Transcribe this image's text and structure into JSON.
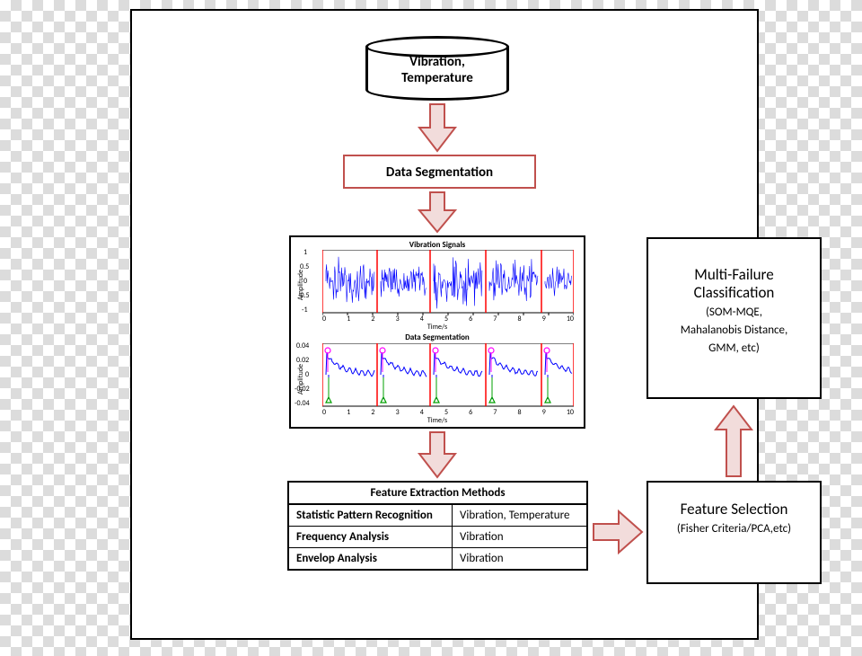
{
  "cylinder": {
    "line1": "Vibration,",
    "line2": "Temperature"
  },
  "data_segmentation": {
    "label": "Data Segmentation"
  },
  "charts": {
    "top": {
      "title": "Vibration Signals",
      "ylabel": "Amplitude",
      "xlabel": "Time/s",
      "ylim": [
        -1,
        1
      ],
      "xlim": [
        0,
        10
      ],
      "segments": [
        0,
        2.2,
        4.3,
        6.5,
        8.7,
        10
      ],
      "signal_color": "#0000ff",
      "seg_color": "#ff0000"
    },
    "bot": {
      "title": "Data Segmentation",
      "ylabel": "Amplitude",
      "xlabel": "Time/s",
      "ylim": [
        -0.04,
        0.04
      ],
      "xlim": [
        0,
        10
      ],
      "segments": [
        0,
        2.2,
        4.3,
        6.5,
        8.7,
        10
      ],
      "signal_color": "#0000ff",
      "seg_color": "#ff0000",
      "marker_up_color": "#ff00ff",
      "marker_dn_color": "#00a000"
    }
  },
  "feature_table": {
    "header": "Feature Extraction Methods",
    "rows": [
      {
        "method": "Statistic Pattern Recognition",
        "input": "Vibration, Temperature"
      },
      {
        "method": "Frequency Analysis",
        "input": "Vibration"
      },
      {
        "method": "Envelop Analysis",
        "input": "Vibration"
      }
    ]
  },
  "feature_selection": {
    "title": "Feature Selection",
    "sub": "(Fisher Criteria/PCA,etc)"
  },
  "multi_failure": {
    "title1": "Multi-Failure",
    "title2": "Classification",
    "sub1": "(SOM-MQE,",
    "sub2": "Mahalanobis Distance,",
    "sub3": "GMM, etc)"
  },
  "arrow_style": {
    "fill": "#f2dcdb",
    "stroke": "#c0504d",
    "stroke_width": 2
  }
}
